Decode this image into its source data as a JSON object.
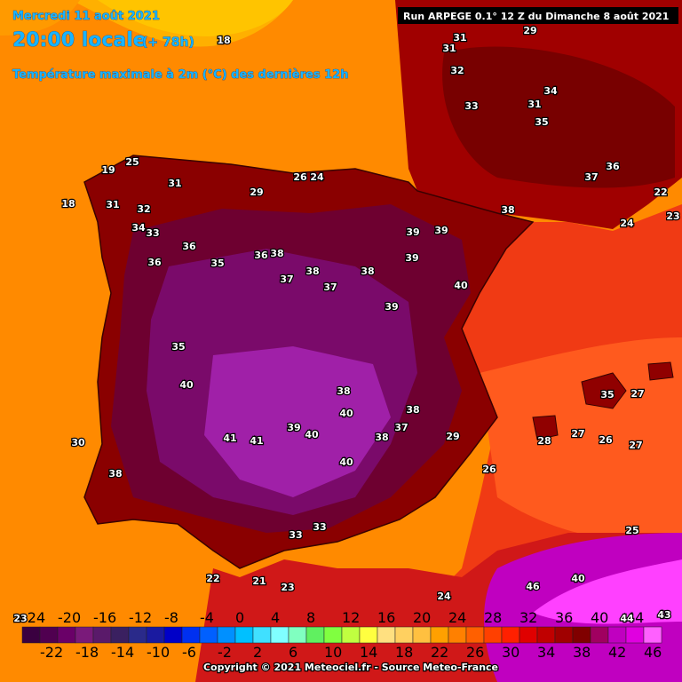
{
  "header": {
    "date": "Mercredi 11 août 2021",
    "time": "20:00 locale",
    "lead": "(+ 78h)",
    "title": "Température maximale à 2m (°C) des dernières 12h",
    "run": "Run ARPEGE 0.1° 12 Z du Dimanche 8 août 2021"
  },
  "colorbar": {
    "ticks_top": [
      -24,
      -20,
      -16,
      -12,
      -8,
      -4,
      0,
      4,
      8,
      12,
      16,
      20,
      24,
      28,
      32,
      36,
      40,
      44
    ],
    "ticks_bottom": [
      -22,
      -18,
      -14,
      -10,
      -6,
      -2,
      2,
      6,
      10,
      14,
      18,
      22,
      26,
      30,
      34,
      38,
      42,
      46
    ],
    "min": -24,
    "step": 2,
    "colors": [
      "#3a0040",
      "#500050",
      "#6a0068",
      "#7a1a7a",
      "#5a1a6a",
      "#3a2060",
      "#2a2a8a",
      "#1a1aa0",
      "#0000c8",
      "#0030f0",
      "#0060ff",
      "#0090ff",
      "#00c0ff",
      "#40e0ff",
      "#80ffff",
      "#80ffc0",
      "#60f060",
      "#80ff40",
      "#c0ff40",
      "#ffff40",
      "#ffe080",
      "#ffd060",
      "#ffc040",
      "#ffa000",
      "#ff8000",
      "#ff6000",
      "#ff4000",
      "#ff2000",
      "#e00000",
      "#c00000",
      "#a00000",
      "#800000",
      "#a00060",
      "#c000c0",
      "#e000e0",
      "#ff60ff"
    ]
  },
  "map_labels": [
    18,
    19,
    25,
    18,
    31,
    32,
    34,
    31,
    29,
    26,
    24,
    33,
    36,
    36,
    35,
    36,
    38,
    37,
    38,
    37,
    39,
    40,
    39,
    38,
    39,
    40,
    38,
    40,
    41,
    41,
    39,
    40,
    40,
    38,
    37,
    38,
    30,
    38,
    35,
    33,
    33,
    22,
    21,
    23,
    31,
    29,
    31,
    32,
    33,
    35,
    34,
    31,
    37,
    36,
    38,
    39,
    22,
    23,
    24,
    27,
    28,
    27,
    26,
    25,
    43,
    46,
    40,
    44,
    27,
    35,
    24,
    26,
    29,
    23
  ],
  "copyright": "Copyright © 2021 Meteociel.fr - Source Meteo-France"
}
